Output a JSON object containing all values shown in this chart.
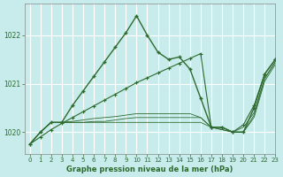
{
  "title": "Graphe pression niveau de la mer (hPa)",
  "bg_color": "#c8ecec",
  "grid_color": "#ffffff",
  "line_color": "#2d6a2d",
  "xlim": [
    -0.5,
    23
  ],
  "ylim": [
    1019.55,
    1022.65
  ],
  "yticks": [
    1020,
    1021,
    1022
  ],
  "xticks": [
    0,
    1,
    2,
    3,
    4,
    5,
    6,
    7,
    8,
    9,
    10,
    11,
    12,
    13,
    14,
    15,
    16,
    17,
    18,
    19,
    20,
    21,
    22,
    23
  ],
  "series": {
    "main": {
      "x": [
        0,
        1,
        2,
        3,
        4,
        5,
        6,
        7,
        8,
        9,
        10,
        11,
        12,
        13,
        14,
        15,
        16,
        17,
        18,
        19,
        20,
        21,
        22,
        23
      ],
      "y": [
        1019.75,
        1020.0,
        1020.2,
        1020.2,
        1020.55,
        1020.85,
        1021.15,
        1021.45,
        1021.75,
        1022.05,
        1022.4,
        1022.0,
        1021.65,
        1021.5,
        1021.55,
        1021.3,
        1020.7,
        1020.1,
        1020.1,
        1020.0,
        1020.0,
        1020.5,
        1021.2,
        1021.5
      ],
      "lw": 1.0,
      "marker": "+",
      "ms": 3.5,
      "mew": 1.0
    },
    "diagonal": {
      "x": [
        0,
        1,
        2,
        3,
        4,
        5,
        6,
        7,
        8,
        9,
        10,
        11,
        12,
        13,
        14,
        15,
        16,
        17,
        18,
        19,
        20,
        21,
        22,
        23
      ],
      "y": [
        1019.75,
        1019.9,
        1020.05,
        1020.18,
        1020.3,
        1020.42,
        1020.54,
        1020.66,
        1020.78,
        1020.9,
        1021.02,
        1021.12,
        1021.22,
        1021.32,
        1021.42,
        1021.52,
        1021.62,
        1020.1,
        1020.1,
        1020.0,
        1020.15,
        1020.55,
        1021.2,
        1021.5
      ],
      "lw": 0.8,
      "marker": "+",
      "ms": 3.0,
      "mew": 0.8
    },
    "flat1": {
      "x": [
        0,
        1,
        2,
        3,
        4,
        5,
        6,
        7,
        8,
        9,
        10,
        11,
        12,
        13,
        14,
        15,
        16,
        17,
        18,
        19,
        20,
        21,
        22,
        23
      ],
      "y": [
        1019.75,
        1020.0,
        1020.2,
        1020.2,
        1020.2,
        1020.2,
        1020.22,
        1020.22,
        1020.25,
        1020.28,
        1020.3,
        1020.3,
        1020.3,
        1020.3,
        1020.3,
        1020.3,
        1020.3,
        1020.1,
        1020.1,
        1020.0,
        1020.0,
        1020.35,
        1021.1,
        1021.45
      ],
      "lw": 0.6,
      "marker": null
    },
    "flat2": {
      "x": [
        0,
        1,
        2,
        3,
        4,
        5,
        6,
        7,
        8,
        9,
        10,
        11,
        12,
        13,
        14,
        15,
        16,
        17,
        18,
        19,
        20,
        21,
        22,
        23
      ],
      "y": [
        1019.75,
        1020.0,
        1020.2,
        1020.2,
        1020.2,
        1020.2,
        1020.2,
        1020.2,
        1020.2,
        1020.2,
        1020.2,
        1020.2,
        1020.2,
        1020.2,
        1020.2,
        1020.2,
        1020.2,
        1020.1,
        1020.05,
        1020.0,
        1020.0,
        1020.3,
        1021.05,
        1021.4
      ],
      "lw": 0.6,
      "marker": null
    },
    "flat3": {
      "x": [
        0,
        1,
        2,
        3,
        4,
        5,
        6,
        7,
        8,
        9,
        10,
        11,
        12,
        13,
        14,
        15,
        16,
        17,
        18,
        19,
        20,
        21,
        22,
        23
      ],
      "y": [
        1019.75,
        1020.0,
        1020.2,
        1020.2,
        1020.22,
        1020.25,
        1020.28,
        1020.3,
        1020.32,
        1020.35,
        1020.38,
        1020.38,
        1020.38,
        1020.38,
        1020.38,
        1020.38,
        1020.3,
        1020.1,
        1020.05,
        1020.0,
        1020.1,
        1020.4,
        1021.12,
        1021.45
      ],
      "lw": 0.6,
      "marker": null
    }
  }
}
